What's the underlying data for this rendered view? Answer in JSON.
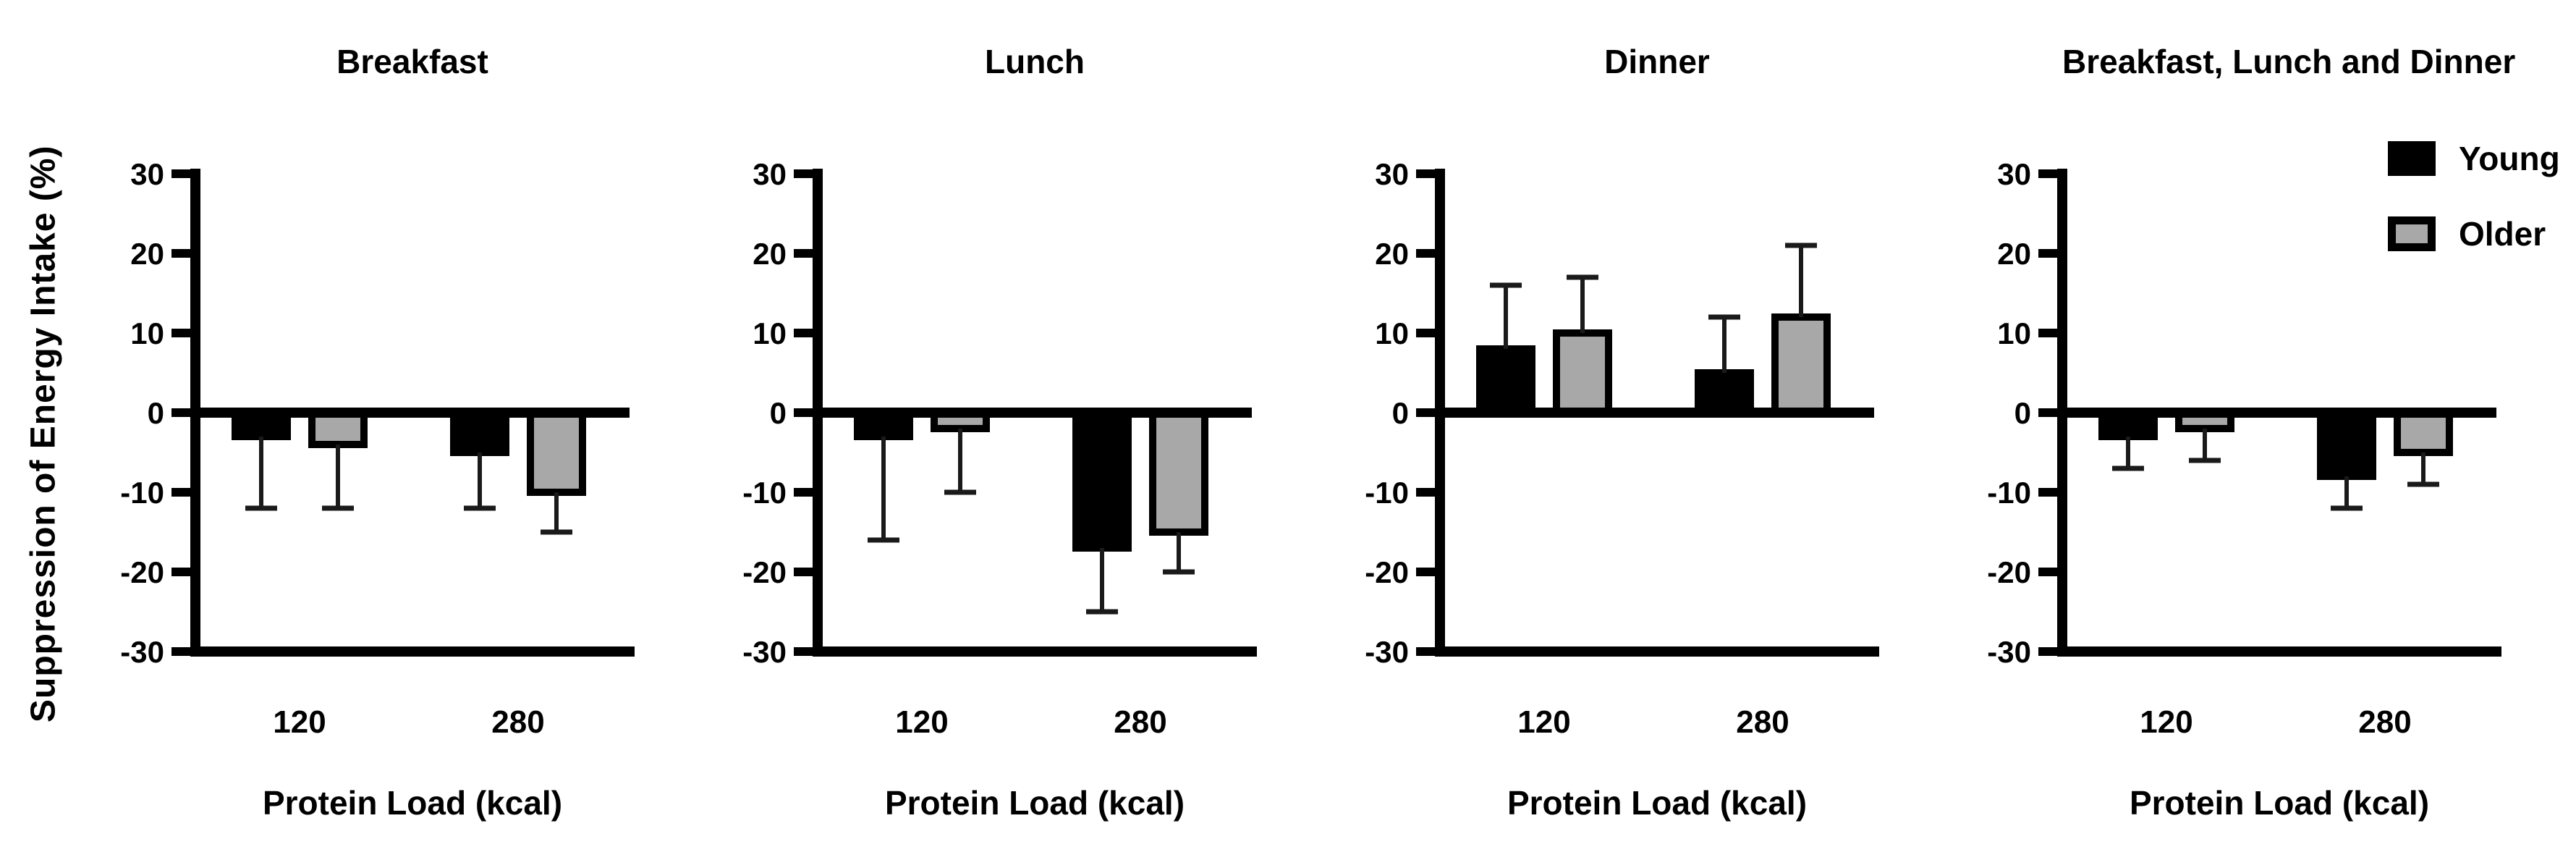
{
  "labels": {
    "y_axis": "Suppression of Energy Intake (%)",
    "x_axis": "Protein Load (kcal)"
  },
  "style": {
    "axis_color": "#000000",
    "error_bar_color": "#1a1a1a",
    "bar_border_color": "#000000",
    "background": "#ffffff"
  },
  "chart_data": [
    {
      "type": "bar",
      "title": "Breakfast",
      "xlabel": "Protein Load (kcal)",
      "ylabel": "Suppression of Energy Intake (%)",
      "categories": [
        "120",
        "280"
      ],
      "ylim": [
        -30,
        30
      ],
      "ytick_step": 10,
      "ytick_labels": [
        "30",
        "20",
        "10",
        "0",
        "-10",
        "-20",
        "-30"
      ],
      "grid": false,
      "error_bars": "one-sided away from zero with end cap",
      "series": [
        {
          "name": "Young",
          "color": "#000000",
          "values": [
            -3,
            -5
          ],
          "errors": [
            9,
            7
          ]
        },
        {
          "name": "Older",
          "color": "#a8a8a8",
          "values": [
            -4,
            -10
          ],
          "errors": [
            8,
            5
          ]
        }
      ]
    },
    {
      "type": "bar",
      "title": "Lunch",
      "xlabel": "Protein Load (kcal)",
      "ylabel": "Suppression of Energy Intake (%)",
      "categories": [
        "120",
        "280"
      ],
      "ylim": [
        -30,
        30
      ],
      "ytick_step": 10,
      "ytick_labels": [
        "30",
        "20",
        "10",
        "0",
        "-10",
        "-20",
        "-30"
      ],
      "grid": false,
      "error_bars": "one-sided away from zero with end cap",
      "series": [
        {
          "name": "Young",
          "color": "#000000",
          "values": [
            -3,
            -17
          ],
          "errors": [
            13,
            8
          ]
        },
        {
          "name": "Older",
          "color": "#a8a8a8",
          "values": [
            -2,
            -15
          ],
          "errors": [
            8,
            5
          ]
        }
      ]
    },
    {
      "type": "bar",
      "title": "Dinner",
      "xlabel": "Protein Load (kcal)",
      "ylabel": "Suppression of Energy Intake (%)",
      "categories": [
        "120",
        "280"
      ],
      "ylim": [
        -30,
        30
      ],
      "ytick_step": 10,
      "ytick_labels": [
        "30",
        "20",
        "10",
        "0",
        "-10",
        "-20",
        "-30"
      ],
      "grid": false,
      "error_bars": "one-sided away from zero with end cap",
      "series": [
        {
          "name": "Young",
          "color": "#000000",
          "values": [
            8,
            5
          ],
          "errors": [
            8,
            7
          ]
        },
        {
          "name": "Older",
          "color": "#a8a8a8",
          "values": [
            10,
            12
          ],
          "errors": [
            7,
            9
          ]
        }
      ]
    },
    {
      "type": "bar",
      "title": "Breakfast, Lunch and Dinner",
      "xlabel": "Protein Load (kcal)",
      "ylabel": "Suppression of Energy Intake (%)",
      "categories": [
        "120",
        "280"
      ],
      "ylim": [
        -30,
        30
      ],
      "ytick_step": 10,
      "ytick_labels": [
        "30",
        "20",
        "10",
        "0",
        "-10",
        "-20",
        "-30"
      ],
      "grid": false,
      "legend": true,
      "legend_position": "top-right",
      "error_bars": "one-sided away from zero with end cap",
      "series": [
        {
          "name": "Young",
          "color": "#000000",
          "values": [
            -3,
            -8
          ],
          "errors": [
            4,
            4
          ]
        },
        {
          "name": "Older",
          "color": "#a8a8a8",
          "values": [
            -2,
            -5
          ],
          "errors": [
            4,
            4
          ]
        }
      ]
    }
  ]
}
